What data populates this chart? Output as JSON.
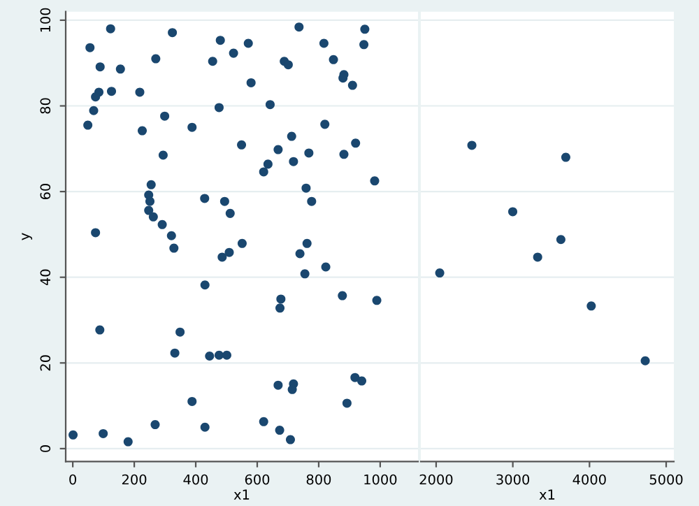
{
  "chart_data": [
    {
      "type": "scatter",
      "xlabel": "x1",
      "ylabel": "y",
      "xlim": [
        -23,
        1123
      ],
      "ylim": [
        -3,
        102
      ],
      "xticks": [
        0,
        200,
        400,
        600,
        800,
        1000
      ],
      "yticks": [
        0,
        20,
        40,
        60,
        80,
        100
      ],
      "grid": "y",
      "marker": "circle",
      "series": [
        {
          "color": "#1a476f",
          "x": [
            123,
            56,
            89,
            155,
            270,
            324,
            85,
            74,
            126,
            218,
            68,
            49,
            226,
            299,
            388,
            294,
            255,
            247,
            251,
            247,
            262,
            291,
            321,
            74,
            429,
            329,
            430,
            88,
            349,
            332,
            445,
            388,
            268,
            430,
            1,
            99,
            180,
            736,
            950,
            480,
            571,
            817,
            947,
            455,
            523,
            688,
            701,
            848,
            882,
            879,
            910,
            580,
            476,
            642,
            820,
            712,
            549,
            668,
            920,
            635,
            621,
            718,
            768,
            882,
            982,
            759,
            777,
            494,
            512,
            551,
            762,
            486,
            509,
            739,
            755,
            823,
            677,
            674,
            877,
            989,
            476,
            501,
            668,
            718,
            714,
            918,
            940,
            892,
            621,
            673,
            708
          ],
          "values": [
            98.0,
            93.6,
            89.1,
            88.6,
            91.0,
            97.1,
            83.2,
            82.1,
            83.4,
            83.2,
            78.9,
            75.5,
            74.2,
            77.6,
            75.0,
            68.5,
            61.6,
            59.2,
            57.7,
            55.6,
            54.1,
            52.3,
            49.7,
            50.4,
            58.4,
            46.8,
            38.2,
            27.7,
            27.2,
            22.3,
            21.6,
            11.0,
            5.6,
            5.0,
            3.2,
            3.5,
            1.6,
            98.4,
            97.9,
            95.3,
            94.6,
            94.6,
            94.3,
            90.4,
            92.3,
            90.4,
            89.6,
            90.8,
            87.3,
            86.5,
            84.8,
            85.4,
            79.6,
            80.3,
            75.7,
            72.9,
            70.9,
            69.8,
            71.3,
            66.4,
            64.6,
            67.0,
            69.0,
            68.7,
            62.5,
            60.8,
            57.7,
            57.7,
            54.9,
            47.9,
            47.9,
            44.7,
            45.8,
            45.5,
            40.8,
            42.4,
            34.9,
            32.8,
            35.7,
            34.6,
            21.8,
            21.8,
            14.8,
            15.1,
            13.8,
            16.6,
            15.8,
            10.6,
            6.3,
            4.3,
            2.1
          ]
        }
      ]
    },
    {
      "type": "scatter",
      "xlabel": "x1",
      "xlim": [
        1800,
        5100
      ],
      "ylim": [
        -3,
        102
      ],
      "xticks": [
        2000,
        3000,
        4000,
        5000
      ],
      "yticks": [
        0,
        20,
        40,
        60,
        80,
        100
      ],
      "tick_labels": "x",
      "grid": "y",
      "marker": "circle",
      "series": [
        {
          "color": "#1a476f",
          "x": [
            2466,
            3691,
            2999,
            3627,
            3324,
            2047,
            4023,
            4727
          ],
          "values": [
            70.8,
            68.0,
            55.3,
            48.8,
            44.7,
            41.0,
            33.3,
            20.5
          ]
        }
      ]
    }
  ]
}
